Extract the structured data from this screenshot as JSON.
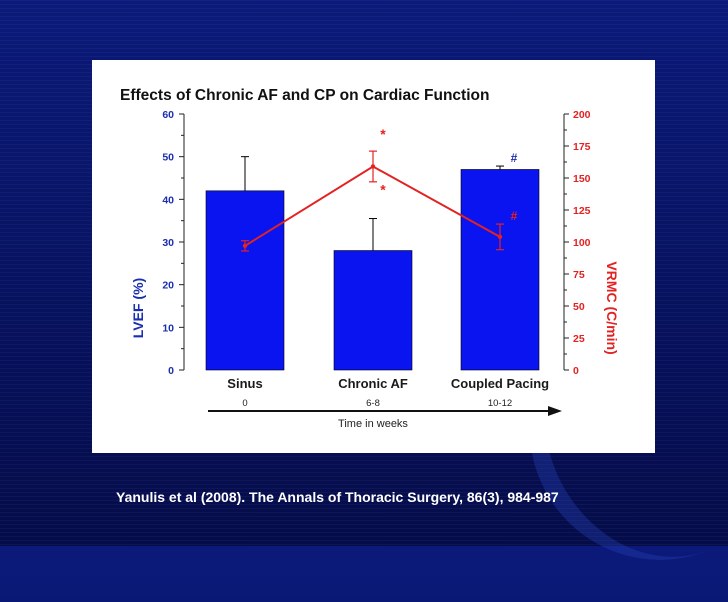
{
  "citation": "Yanulis et al (2008). The Annals of Thoracic Surgery, 86(3), 984-987",
  "colors": {
    "bar": "#0a14f0",
    "line": "#e32222",
    "left_axis_text": "#1a2fb0",
    "right_axis_text": "#e32222",
    "asterisk": "#e32222",
    "hash_blue": "#1a2fb0",
    "hash_red": "#e32222"
  },
  "chart_data": {
    "type": "bar",
    "title": "Effects of Chronic AF and CP on Cardiac Function",
    "categories": [
      "Sinus",
      "Chronic AF",
      "Coupled Pacing"
    ],
    "time_points": [
      "0",
      "6-8",
      "10-12"
    ],
    "xlabel": "Time in weeks",
    "ylabel": "LVEF (%)",
    "y2label": "VRMC (C/min)",
    "ylim": [
      0,
      60
    ],
    "y2lim": [
      0,
      200
    ],
    "yticks": [
      0,
      10,
      20,
      30,
      40,
      50,
      60
    ],
    "y2ticks": [
      0,
      25,
      50,
      75,
      100,
      125,
      150,
      175,
      200
    ],
    "series": [
      {
        "name": "LVEF (%)",
        "type": "bar",
        "axis": "left",
        "values": [
          42,
          28,
          47
        ],
        "errors": [
          8,
          7.5,
          0.8
        ]
      },
      {
        "name": "VRMC (C/min)",
        "type": "line",
        "axis": "right",
        "values": [
          97,
          159,
          104
        ],
        "errors": [
          4,
          12,
          10
        ]
      }
    ],
    "annotations": [
      {
        "text": "*",
        "category": 1,
        "series": "VRMC (C/min)",
        "color_key": "asterisk"
      },
      {
        "text": "*",
        "category": 1,
        "series": "LVEF (%)",
        "color_key": "asterisk"
      },
      {
        "text": "#",
        "category": 2,
        "series": "LVEF (%)",
        "color_key": "hash_blue"
      },
      {
        "text": "#",
        "category": 2,
        "series": "VRMC (C/min)",
        "color_key": "hash_red"
      }
    ]
  }
}
